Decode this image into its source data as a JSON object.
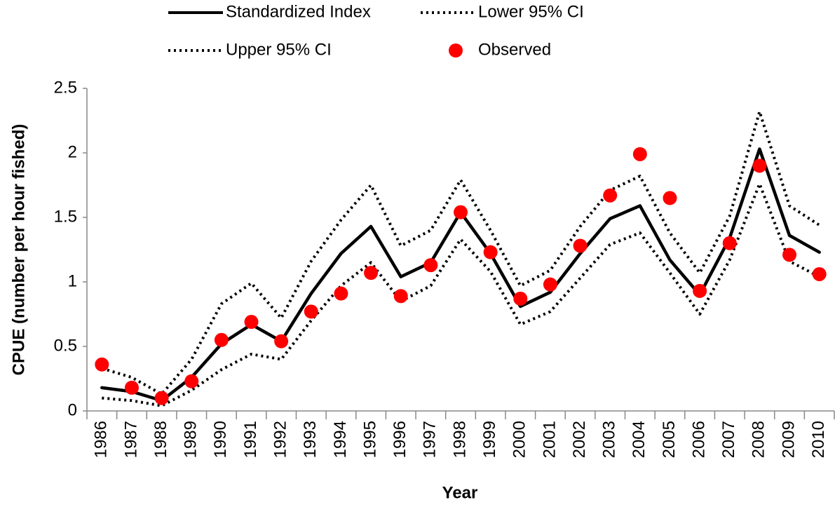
{
  "chart_data": {
    "type": "line",
    "x_label": "Year",
    "y_label": "CPUE (number per hour fished)",
    "categories": [
      "1986",
      "1987",
      "1988",
      "1989",
      "1990",
      "1991",
      "1992",
      "1993",
      "1994",
      "1995",
      "1996",
      "1997",
      "1998",
      "1999",
      "2000",
      "2001",
      "2002",
      "2003",
      "2004",
      "2005",
      "2006",
      "2007",
      "2008",
      "2009",
      "2010"
    ],
    "ylim": [
      0,
      2.5
    ],
    "yticks": [
      0,
      0.5,
      1,
      1.5,
      2,
      2.5
    ],
    "grid": false,
    "series": [
      {
        "name": "Standardized Index",
        "color": "#000000",
        "style": "solid",
        "values": [
          0.18,
          0.15,
          0.08,
          0.26,
          0.52,
          0.67,
          0.54,
          0.91,
          1.22,
          1.43,
          1.04,
          1.15,
          1.54,
          1.22,
          0.81,
          0.92,
          1.22,
          1.49,
          1.59,
          1.17,
          0.9,
          1.34,
          2.03,
          1.36,
          1.23
        ]
      },
      {
        "name": "Lower 95% CI",
        "color": "#000000",
        "style": "dotted",
        "values": [
          0.1,
          0.08,
          0.04,
          0.16,
          0.32,
          0.44,
          0.4,
          0.7,
          0.97,
          1.15,
          0.85,
          0.97,
          1.33,
          1.08,
          0.67,
          0.77,
          1.03,
          1.29,
          1.38,
          1.07,
          0.75,
          1.17,
          1.76,
          1.16,
          1.04
        ]
      },
      {
        "name": "Upper 95% CI",
        "color": "#000000",
        "style": "dotted",
        "values": [
          0.33,
          0.26,
          0.13,
          0.4,
          0.83,
          0.99,
          0.72,
          1.16,
          1.48,
          1.75,
          1.28,
          1.4,
          1.79,
          1.4,
          0.97,
          1.09,
          1.43,
          1.71,
          1.82,
          1.38,
          1.07,
          1.51,
          2.32,
          1.59,
          1.44
        ]
      },
      {
        "name": "Observed",
        "color": "#ff0000",
        "style": "markers",
        "values": [
          0.36,
          0.18,
          0.1,
          0.23,
          0.55,
          0.69,
          0.54,
          0.77,
          0.91,
          1.07,
          0.89,
          1.13,
          1.54,
          1.23,
          0.87,
          0.98,
          1.28,
          1.67,
          1.99,
          1.65,
          0.93,
          1.3,
          1.9,
          1.21,
          1.06
        ]
      }
    ]
  }
}
